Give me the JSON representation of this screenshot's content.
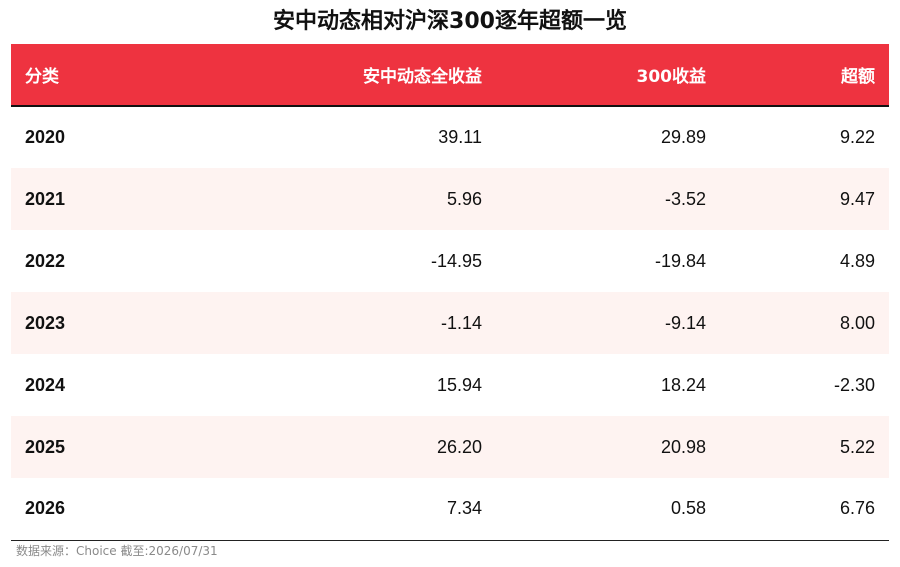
{
  "chart_data": {
    "type": "table",
    "title": "安中动态相对沪深300逐年超额一览",
    "columns": [
      "分类",
      "安中动态全收益",
      "300收益",
      "超额"
    ],
    "rows": [
      [
        "2020",
        "39.11",
        "29.89",
        "9.22"
      ],
      [
        "2021",
        "5.96",
        "-3.52",
        "9.47"
      ],
      [
        "2022",
        "-14.95",
        "-19.84",
        "4.89"
      ],
      [
        "2023",
        "-1.14",
        "-9.14",
        "8.00"
      ],
      [
        "2024",
        "15.94",
        "18.24",
        "-2.30"
      ],
      [
        "2025",
        "26.20",
        "20.98",
        "5.22"
      ],
      [
        "2026",
        "7.34",
        "0.58",
        "6.76"
      ]
    ],
    "source": "数据来源：Choice 截至:2026/07/31"
  },
  "colors": {
    "header_bg": "#ee3340",
    "header_text": "#ffffff",
    "alt_row_bg": "#fef3f1"
  }
}
